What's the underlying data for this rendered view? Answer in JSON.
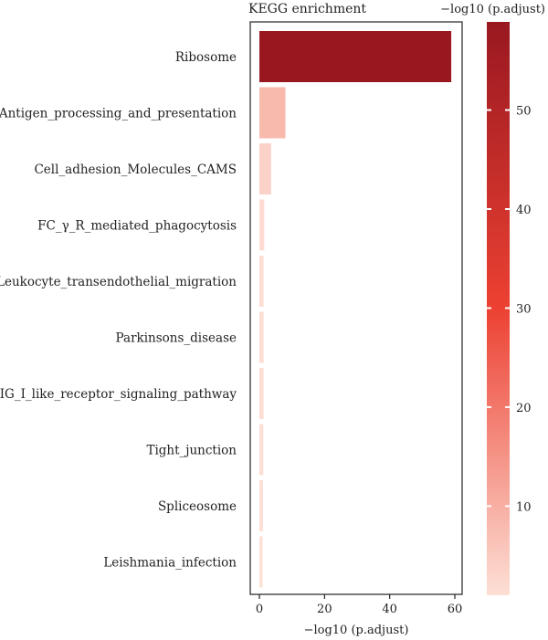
{
  "chart_data": {
    "type": "bar",
    "orientation": "horizontal",
    "title": "KEGG enrichment",
    "xlabel": "−log10 (p.adjust)",
    "ylabel": "",
    "xlim": [
      0,
      60
    ],
    "xticks": [
      0,
      20,
      40,
      60
    ],
    "grid": false,
    "categories": [
      "Ribosome",
      "Antigen_processing_and_presentation",
      "Cell_adhesion_Molecules_CAMS",
      "FC_γ_R_mediated_phagocytosis",
      "Leukocyte_transendothelial_migration",
      "Parkinsons_disease",
      "RIG_I_like_receptor_signaling_pathway",
      "Tight_junction",
      "Spliceosome",
      "Leishmania_infection"
    ],
    "values": [
      58.9,
      8.0,
      3.6,
      1.5,
      1.3,
      1.3,
      1.3,
      1.2,
      1.1,
      1.0
    ],
    "colorbar": {
      "title": "−log10 (p.adjust)",
      "range": [
        1.0,
        58.9
      ],
      "ticks": [
        10,
        20,
        30,
        40,
        50
      ],
      "color_low": "#fde0d6",
      "color_mid": "#ec4132",
      "color_high": "#991820",
      "placement": "right"
    }
  }
}
